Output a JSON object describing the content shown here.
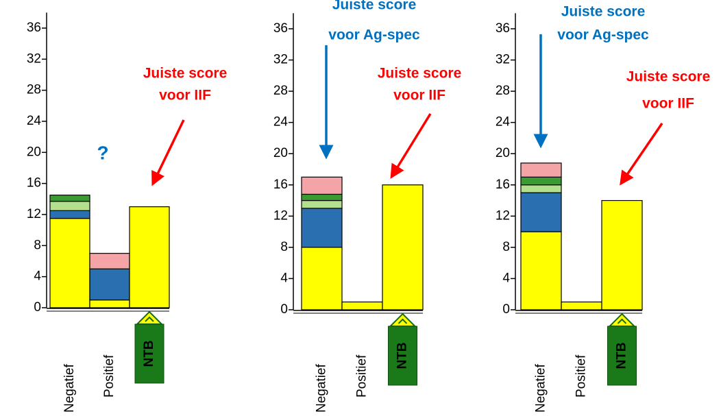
{
  "chart_data": [
    {
      "type": "bar",
      "stacked": true,
      "categories": [
        "Negatief",
        "Positief",
        "NTB"
      ],
      "series": [
        {
          "color": "#ffff00",
          "values": [
            11.5,
            1,
            13
          ]
        },
        {
          "color": "#2a6fb0",
          "values": [
            1,
            4,
            0
          ]
        },
        {
          "color": "#b4e08e",
          "values": [
            1.2,
            0,
            0
          ]
        },
        {
          "color": "#3c9a32",
          "values": [
            0.8,
            0,
            0
          ]
        },
        {
          "color": "#f4a3a6",
          "values": [
            0,
            2,
            0
          ]
        }
      ],
      "ylim": [
        0,
        38
      ],
      "yticks": [
        0,
        4,
        8,
        12,
        16,
        20,
        24,
        28,
        32,
        36
      ],
      "annotations": [
        {
          "text": [
            "?"
          ],
          "color": "#0070c0"
        },
        {
          "text": [
            "Juiste score",
            "voor IIF"
          ],
          "color": "#ff0000"
        }
      ]
    },
    {
      "type": "bar",
      "stacked": true,
      "categories": [
        "Negatief",
        "Positief",
        "NTB"
      ],
      "series": [
        {
          "color": "#ffff00",
          "values": [
            8,
            1,
            16
          ]
        },
        {
          "color": "#2a6fb0",
          "values": [
            5,
            0,
            0
          ]
        },
        {
          "color": "#b4e08e",
          "values": [
            1,
            0,
            0
          ]
        },
        {
          "color": "#3c9a32",
          "values": [
            0.8,
            0,
            0
          ]
        },
        {
          "color": "#f4a3a6",
          "values": [
            2.2,
            0,
            0
          ]
        }
      ],
      "ylim": [
        0,
        38
      ],
      "yticks": [
        0,
        4,
        8,
        12,
        16,
        20,
        24,
        28,
        32,
        36
      ],
      "annotations": [
        {
          "text": [
            "Juiste score",
            "voor Ag-spec"
          ],
          "color": "#0070c0"
        },
        {
          "text": [
            "Juiste score",
            "voor IIF"
          ],
          "color": "#ff0000"
        }
      ]
    },
    {
      "type": "bar",
      "stacked": true,
      "categories": [
        "Negatief",
        "Positief",
        "NTB"
      ],
      "series": [
        {
          "color": "#ffff00",
          "values": [
            10,
            1,
            14
          ]
        },
        {
          "color": "#2a6fb0",
          "values": [
            5,
            0,
            0
          ]
        },
        {
          "color": "#b4e08e",
          "values": [
            1,
            0,
            0
          ]
        },
        {
          "color": "#3c9a32",
          "values": [
            1,
            0,
            0
          ]
        },
        {
          "color": "#f4a3a6",
          "values": [
            1.8,
            0,
            0
          ]
        }
      ],
      "ylim": [
        0,
        38
      ],
      "yticks": [
        0,
        4,
        8,
        12,
        16,
        20,
        24,
        28,
        32,
        36
      ],
      "annotations": [
        {
          "text": [
            "Juiste score",
            "voor Ag-spec"
          ],
          "color": "#0070c0"
        },
        {
          "text": [
            "Juiste score",
            "voor IIF"
          ],
          "color": "#ff0000"
        }
      ]
    }
  ]
}
